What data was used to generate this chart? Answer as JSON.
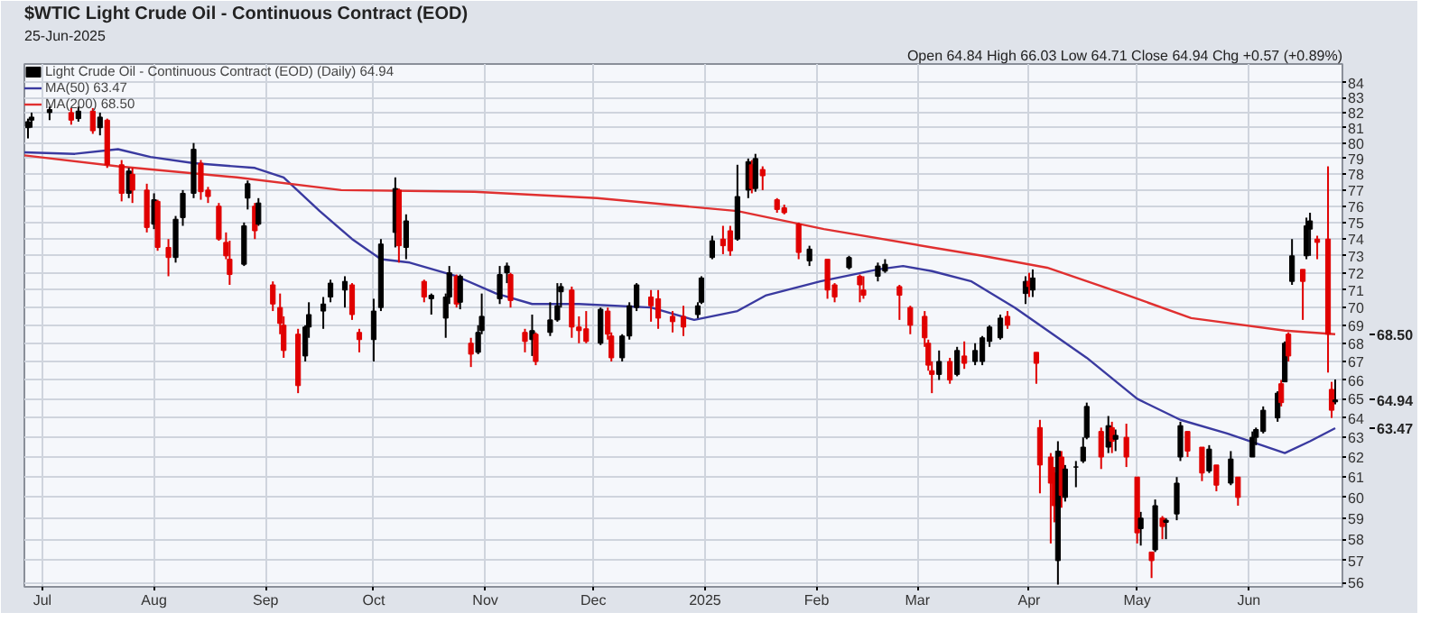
{
  "chart_data": {
    "type": "candlestick",
    "title": "$WTIC Light Crude Oil - Continuous Contract (EOD)",
    "subtitle": "25-Jun-2025",
    "annotations": [
      "Open 64.84 High 66.03 Low 64.71 Close 64.94 Chg +0.57 (+0.89%)",
      "64.94",
      "63.47",
      "68.50"
    ],
    "log": true,
    "grid": true,
    "legend": "top left",
    "xlim": [
      "2024-06-26",
      "2025-06-27"
    ],
    "xticks": [
      {
        "value": "2024-07-01",
        "label": "Jul"
      },
      {
        "value": "2024-08-01",
        "label": "Aug"
      },
      {
        "value": "2024-09-01",
        "label": "Sep"
      },
      {
        "value": "2024-10-01",
        "label": "Oct"
      },
      {
        "value": "2024-11-01",
        "label": "Nov"
      },
      {
        "value": "2024-12-01",
        "label": "Dec"
      },
      {
        "value": "2025-01-01",
        "label": "2025"
      },
      {
        "value": "2025-02-01",
        "label": "Feb"
      },
      {
        "value": "2025-03-01",
        "label": "Mar"
      },
      {
        "value": "2025-04-01",
        "label": "Apr"
      },
      {
        "value": "2025-05-01",
        "label": "May"
      },
      {
        "value": "2025-06-01",
        "label": "Jun"
      }
    ],
    "ylim": [
      55.8,
      85.3
    ],
    "yticks": [
      56,
      57,
      58,
      59,
      60,
      61,
      62,
      63,
      64,
      65,
      66,
      67,
      68,
      69,
      70,
      71,
      72,
      73,
      74,
      75,
      76,
      77,
      78,
      79,
      80,
      81,
      82,
      83,
      84
    ],
    "series": [
      {
        "type": "candlestick",
        "name": "Light Crude Oil - Continuous Contract (EOD) (Daily) 64.94",
        "x": [
          "2024-06-27",
          "2024-06-28",
          "2024-07-03",
          "2024-07-09",
          "2024-07-11",
          "2024-07-15",
          "2024-07-17",
          "2024-07-19",
          "2024-07-23",
          "2024-07-25",
          "2024-07-26",
          "2024-07-30",
          "2024-08-01",
          "2024-08-02",
          "2024-08-05",
          "2024-08-07",
          "2024-08-09",
          "2024-08-12",
          "2024-08-14",
          "2024-08-16",
          "2024-08-19",
          "2024-08-21",
          "2024-08-22",
          "2024-08-26",
          "2024-08-27",
          "2024-08-29",
          "2024-08-30",
          "2024-09-03",
          "2024-09-05",
          "2024-09-06",
          "2024-09-10",
          "2024-09-12",
          "2024-09-13",
          "2024-09-17",
          "2024-09-19",
          "2024-09-23",
          "2024-09-25",
          "2024-09-27",
          "2024-10-01",
          "2024-10-03",
          "2024-10-07",
          "2024-10-08",
          "2024-10-10",
          "2024-10-15",
          "2024-10-17",
          "2024-10-21",
          "2024-10-22",
          "2024-10-24",
          "2024-10-25",
          "2024-10-28",
          "2024-10-30",
          "2024-10-31",
          "2024-11-05",
          "2024-11-07",
          "2024-11-08",
          "2024-11-12",
          "2024-11-14",
          "2024-11-15",
          "2024-11-19",
          "2024-11-21",
          "2024-11-22",
          "2024-11-25",
          "2024-11-27",
          "2024-11-29",
          "2024-12-03",
          "2024-12-05",
          "2024-12-06",
          "2024-12-09",
          "2024-12-11",
          "2024-12-13",
          "2024-12-17",
          "2024-12-19",
          "2024-12-23",
          "2024-12-26",
          "2024-12-30",
          "2024-12-31",
          "2025-01-03",
          "2025-01-06",
          "2025-01-08",
          "2025-01-10",
          "2025-01-13",
          "2025-01-14",
          "2025-01-15",
          "2025-01-17",
          "2025-01-21",
          "2025-01-23",
          "2025-01-27",
          "2025-01-30",
          "2025-02-04",
          "2025-02-06",
          "2025-02-10",
          "2025-02-13",
          "2025-02-14",
          "2025-02-18",
          "2025-02-20",
          "2025-02-24",
          "2025-02-27",
          "2025-03-03",
          "2025-03-04",
          "2025-03-05",
          "2025-03-07",
          "2025-03-10",
          "2025-03-12",
          "2025-03-14",
          "2025-03-17",
          "2025-03-19",
          "2025-03-21",
          "2025-03-24",
          "2025-03-26",
          "2025-03-31",
          "2025-04-01",
          "2025-04-02",
          "2025-04-03",
          "2025-04-04",
          "2025-04-07",
          "2025-04-08",
          "2025-04-09",
          "2025-04-10",
          "2025-04-11",
          "2025-04-14",
          "2025-04-16",
          "2025-04-17",
          "2025-04-21",
          "2025-04-23",
          "2025-04-24",
          "2025-04-25",
          "2025-04-28",
          "2025-05-01",
          "2025-05-02",
          "2025-05-05",
          "2025-05-06",
          "2025-05-08",
          "2025-05-09",
          "2025-05-12",
          "2025-05-13",
          "2025-05-15",
          "2025-05-19",
          "2025-05-21",
          "2025-05-23",
          "2025-05-27",
          "2025-05-29",
          "2025-06-02",
          "2025-06-03",
          "2025-06-05",
          "2025-06-09",
          "2025-06-10",
          "2025-06-11",
          "2025-06-12",
          "2025-06-13",
          "2025-06-16",
          "2025-06-17",
          "2025-06-18",
          "2025-06-20",
          "2025-06-23",
          "2025-06-24",
          "2025-06-25"
        ],
        "ohlc": [
          [
            81.0,
            81.6,
            80.3,
            81.4
          ],
          [
            81.5,
            82.0,
            81.0,
            81.7
          ],
          [
            82.0,
            82.4,
            81.5,
            82.2
          ],
          [
            82.0,
            82.3,
            81.2,
            81.5
          ],
          [
            81.6,
            82.4,
            81.4,
            82.1
          ],
          [
            82.1,
            82.3,
            80.6,
            80.8
          ],
          [
            81.0,
            82.0,
            80.5,
            81.7
          ],
          [
            81.5,
            81.6,
            78.4,
            78.6
          ],
          [
            78.6,
            78.9,
            76.3,
            76.8
          ],
          [
            76.8,
            78.4,
            76.5,
            78.2
          ],
          [
            78.0,
            78.4,
            76.2,
            77.0
          ],
          [
            77.0,
            77.4,
            74.4,
            74.7
          ],
          [
            74.9,
            76.8,
            74.6,
            76.4
          ],
          [
            76.3,
            76.4,
            73.3,
            73.5
          ],
          [
            73.5,
            74.0,
            71.8,
            72.9
          ],
          [
            72.9,
            75.4,
            72.6,
            75.2
          ],
          [
            75.3,
            77.0,
            74.8,
            76.8
          ],
          [
            76.8,
            80.0,
            76.5,
            79.6
          ],
          [
            78.7,
            78.9,
            76.4,
            76.9
          ],
          [
            77.0,
            77.2,
            76.2,
            76.6
          ],
          [
            76.0,
            76.2,
            73.9,
            74.0
          ],
          [
            73.8,
            74.4,
            72.8,
            73.0
          ],
          [
            72.8,
            73.9,
            71.3,
            71.9
          ],
          [
            72.5,
            75.0,
            72.4,
            74.8
          ],
          [
            76.5,
            77.6,
            75.8,
            77.4
          ],
          [
            76.0,
            76.2,
            74.0,
            74.5
          ],
          [
            74.9,
            76.5,
            74.8,
            76.2
          ],
          [
            71.3,
            71.5,
            69.8,
            70.2
          ],
          [
            70.0,
            70.8,
            68.5,
            69.1
          ],
          [
            69.0,
            69.5,
            67.2,
            67.6
          ],
          [
            68.5,
            68.8,
            65.3,
            65.7
          ],
          [
            67.3,
            69.0,
            67.0,
            68.9
          ],
          [
            68.9,
            70.3,
            68.3,
            69.6
          ],
          [
            69.8,
            70.6,
            68.8,
            70.2
          ],
          [
            70.6,
            71.6,
            70.3,
            71.4
          ],
          [
            71.0,
            71.8,
            70.0,
            71.5
          ],
          [
            71.3,
            71.4,
            69.3,
            69.6
          ],
          [
            68.6,
            68.8,
            67.5,
            68.2
          ],
          [
            68.2,
            70.5,
            67.0,
            69.8
          ],
          [
            70.0,
            74.0,
            69.8,
            73.7
          ],
          [
            74.4,
            77.8,
            73.5,
            77.1
          ],
          [
            77.0,
            77.1,
            72.6,
            73.6
          ],
          [
            73.5,
            75.5,
            72.8,
            75.1
          ],
          [
            71.5,
            71.6,
            70.3,
            70.6
          ],
          [
            70.5,
            70.8,
            69.6,
            70.7
          ],
          [
            69.4,
            70.8,
            68.3,
            70.6
          ],
          [
            70.6,
            72.4,
            70.2,
            72.0
          ],
          [
            71.8,
            71.9,
            70.0,
            70.2
          ],
          [
            70.3,
            71.9,
            69.9,
            71.8
          ],
          [
            68.0,
            68.3,
            66.7,
            67.4
          ],
          [
            67.5,
            69.0,
            67.4,
            68.6
          ],
          [
            68.7,
            70.8,
            68.5,
            69.5
          ],
          [
            70.5,
            72.4,
            70.2,
            71.9
          ],
          [
            72.0,
            72.6,
            71.4,
            72.4
          ],
          [
            71.9,
            72.0,
            70.0,
            70.4
          ],
          [
            68.6,
            68.8,
            67.5,
            68.1
          ],
          [
            68.2,
            69.6,
            67.3,
            68.7
          ],
          [
            68.5,
            68.6,
            66.8,
            67.0
          ],
          [
            68.6,
            70.3,
            68.4,
            69.3
          ],
          [
            69.3,
            71.4,
            69.2,
            70.1
          ],
          [
            70.9,
            71.4,
            70.0,
            71.2
          ],
          [
            71.0,
            71.2,
            68.3,
            68.9
          ],
          [
            68.9,
            69.5,
            68.0,
            68.7
          ],
          [
            68.8,
            69.8,
            68.0,
            68.1
          ],
          [
            68.0,
            70.0,
            67.9,
            69.9
          ],
          [
            69.8,
            70.0,
            68.2,
            68.5
          ],
          [
            68.4,
            68.6,
            67.0,
            67.2
          ],
          [
            67.2,
            68.5,
            67.0,
            68.4
          ],
          [
            68.4,
            70.3,
            68.2,
            70.1
          ],
          [
            70.0,
            71.4,
            69.8,
            71.3
          ],
          [
            70.6,
            71.0,
            69.2,
            70.1
          ],
          [
            70.5,
            71.0,
            68.8,
            69.4
          ],
          [
            69.5,
            69.8,
            68.6,
            69.2
          ],
          [
            69.5,
            70.1,
            68.4,
            68.9
          ],
          [
            69.6,
            70.3,
            69.4,
            70.1
          ],
          [
            70.3,
            71.8,
            70.2,
            71.7
          ],
          [
            72.9,
            74.2,
            72.8,
            73.9
          ],
          [
            74.0,
            74.8,
            73.1,
            73.6
          ],
          [
            74.5,
            74.8,
            73.0,
            73.3
          ],
          [
            74.0,
            78.6,
            73.9,
            76.6
          ],
          [
            77.0,
            79.0,
            76.5,
            78.8
          ],
          [
            78.6,
            78.9,
            76.8,
            77.1
          ],
          [
            77.1,
            79.3,
            76.9,
            79.0
          ],
          [
            78.3,
            78.5,
            77.0,
            77.9
          ],
          [
            76.4,
            76.5,
            75.6,
            75.8
          ],
          [
            75.9,
            76.1,
            75.5,
            75.6
          ],
          [
            74.9,
            75.0,
            72.8,
            73.2
          ],
          [
            72.7,
            73.6,
            72.4,
            73.4
          ],
          [
            72.8,
            72.8,
            70.5,
            71.0
          ],
          [
            71.3,
            71.4,
            70.3,
            70.6
          ],
          [
            72.3,
            73.0,
            72.2,
            72.9
          ],
          [
            71.8,
            71.9,
            70.3,
            71.3
          ],
          [
            71.0,
            71.8,
            70.5,
            70.7
          ],
          [
            71.8,
            72.6,
            71.5,
            72.4
          ],
          [
            72.1,
            72.8,
            72.0,
            72.5
          ],
          [
            71.2,
            71.3,
            69.3,
            70.7
          ],
          [
            70.0,
            70.1,
            68.5,
            69.0
          ],
          [
            69.5,
            69.8,
            67.8,
            68.3
          ],
          [
            68.0,
            68.2,
            66.5,
            66.8
          ],
          [
            66.5,
            67.0,
            65.3,
            66.3
          ],
          [
            66.3,
            67.6,
            66.0,
            67.0
          ],
          [
            67.0,
            67.2,
            65.8,
            66.0
          ],
          [
            66.3,
            67.8,
            66.2,
            67.6
          ],
          [
            67.3,
            68.1,
            66.6,
            66.9
          ],
          [
            67.0,
            68.0,
            66.8,
            67.6
          ],
          [
            67.0,
            68.4,
            66.8,
            68.3
          ],
          [
            68.1,
            69.0,
            67.8,
            68.9
          ],
          [
            68.3,
            69.6,
            68.2,
            69.4
          ],
          [
            69.5,
            69.8,
            68.8,
            69.0
          ],
          [
            70.8,
            71.8,
            70.2,
            71.5
          ],
          [
            71.5,
            72.0,
            70.6,
            71.2
          ],
          [
            71.0,
            72.2,
            70.6,
            71.7
          ],
          [
            67.5,
            67.5,
            65.8,
            66.9
          ],
          [
            63.5,
            63.9,
            60.2,
            61.6
          ],
          [
            62.0,
            62.2,
            57.8,
            60.7
          ],
          [
            61.2,
            61.5,
            58.8,
            59.6
          ],
          [
            57.0,
            62.8,
            55.9,
            62.3
          ],
          [
            62.0,
            62.3,
            59.5,
            60.1
          ],
          [
            60.0,
            61.6,
            59.8,
            61.4
          ],
          [
            61.5,
            61.8,
            60.5,
            61.5
          ],
          [
            61.8,
            63.0,
            61.7,
            62.5
          ],
          [
            63.0,
            64.8,
            62.9,
            64.6
          ],
          [
            63.3,
            63.5,
            61.4,
            62.0
          ],
          [
            62.5,
            64.1,
            62.2,
            63.6
          ],
          [
            63.5,
            63.8,
            62.2,
            62.8
          ],
          [
            62.9,
            63.4,
            62.3,
            63.1
          ],
          [
            63.0,
            63.7,
            61.5,
            62.0
          ],
          [
            61.0,
            61.0,
            57.8,
            58.3
          ],
          [
            58.5,
            59.3,
            57.7,
            59.0
          ],
          [
            57.4,
            57.4,
            56.2,
            57.0
          ],
          [
            57.5,
            59.9,
            57.4,
            59.6
          ],
          [
            59.0,
            59.1,
            58.0,
            58.6
          ],
          [
            58.8,
            59.0,
            58.0,
            58.9
          ],
          [
            59.2,
            61.0,
            58.9,
            60.7
          ],
          [
            62.0,
            63.8,
            61.8,
            63.6
          ],
          [
            63.3,
            63.3,
            62.0,
            62.3
          ],
          [
            62.5,
            62.5,
            60.8,
            61.2
          ],
          [
            61.3,
            62.6,
            61.2,
            62.4
          ],
          [
            61.6,
            61.6,
            60.3,
            60.6
          ],
          [
            60.7,
            62.3,
            60.6,
            61.9
          ],
          [
            61.0,
            61.0,
            59.6,
            60.0
          ],
          [
            62.0,
            63.3,
            62.0,
            63.0
          ],
          [
            63.0,
            63.5,
            62.6,
            63.4
          ],
          [
            63.3,
            64.6,
            63.2,
            64.4
          ],
          [
            64.0,
            65.4,
            63.8,
            65.3
          ],
          [
            65.8,
            66.0,
            64.6,
            64.8
          ],
          [
            65.9,
            68.1,
            65.9,
            68.0
          ],
          [
            68.5,
            68.6,
            67.0,
            67.3
          ],
          [
            71.5,
            74.0,
            71.3,
            73.0
          ],
          [
            72.2,
            72.2,
            69.3,
            71.5
          ],
          [
            73.0,
            75.3,
            72.8,
            74.8
          ],
          [
            74.6,
            75.6,
            73.0,
            75.1
          ],
          [
            74.0,
            74.2,
            72.8,
            73.8
          ],
          [
            74.0,
            78.5,
            66.4,
            68.5
          ],
          [
            65.5,
            65.9,
            64.0,
            64.4
          ],
          [
            64.84,
            66.03,
            64.71,
            64.94
          ]
        ],
        "colors": [
          "#000000",
          "#000000",
          "#000000",
          "#e00000",
          "#000000",
          "#e00000",
          "#000000",
          "#e00000",
          "#e00000",
          "#000000",
          "#e00000",
          "#e00000",
          "#000000",
          "#e00000",
          "#e00000",
          "#000000",
          "#000000",
          "#000000",
          "#e00000",
          "#e00000",
          "#e00000",
          "#e00000",
          "#e00000",
          "#000000",
          "#000000",
          "#e00000",
          "#000000",
          "#e00000",
          "#e00000",
          "#e00000",
          "#e00000",
          "#000000",
          "#000000",
          "#000000",
          "#000000",
          "#000000",
          "#e00000",
          "#e00000",
          "#000000",
          "#000000",
          "#000000",
          "#e00000",
          "#000000",
          "#e00000",
          "#000000",
          "#000000",
          "#000000",
          "#e00000",
          "#000000",
          "#e00000",
          "#000000",
          "#000000",
          "#000000",
          "#000000",
          "#e00000",
          "#e00000",
          "#000000",
          "#e00000",
          "#000000",
          "#000000",
          "#000000",
          "#e00000",
          "#e00000",
          "#e00000",
          "#000000",
          "#e00000",
          "#e00000",
          "#000000",
          "#000000",
          "#000000",
          "#e00000",
          "#e00000",
          "#e00000",
          "#e00000",
          "#000000",
          "#000000",
          "#000000",
          "#e00000",
          "#e00000",
          "#000000",
          "#000000",
          "#e00000",
          "#000000",
          "#e00000",
          "#e00000",
          "#e00000",
          "#e00000",
          "#000000",
          "#e00000",
          "#e00000",
          "#000000",
          "#e00000",
          "#e00000",
          "#000000",
          "#000000",
          "#e00000",
          "#e00000",
          "#e00000",
          "#e00000",
          "#e00000",
          "#000000",
          "#e00000",
          "#000000",
          "#e00000",
          "#000000",
          "#000000",
          "#000000",
          "#000000",
          "#e00000",
          "#000000",
          "#e00000",
          "#000000",
          "#e00000",
          "#e00000",
          "#e00000",
          "#e00000",
          "#000000",
          "#e00000",
          "#000000",
          "#000000",
          "#000000",
          "#000000",
          "#e00000",
          "#000000",
          "#e00000",
          "#000000",
          "#e00000",
          "#e00000",
          "#000000",
          "#e00000",
          "#000000",
          "#e00000",
          "#000000",
          "#000000",
          "#000000",
          "#e00000",
          "#e00000",
          "#000000",
          "#e00000",
          "#000000",
          "#e00000",
          "#000000",
          "#000000",
          "#000000",
          "#000000",
          "#e00000",
          "#000000",
          "#e00000",
          "#000000",
          "#e00000",
          "#000000",
          "#000000",
          "#e00000",
          "#e00000",
          "#e00000",
          "#000000"
        ]
      },
      {
        "type": "line",
        "name": "MA(50) 63.47",
        "color": "#3a3aa0",
        "x": [
          "2024-06-26",
          "2024-07-10",
          "2024-07-22",
          "2024-07-31",
          "2024-08-12",
          "2024-08-29",
          "2024-09-06",
          "2024-09-16",
          "2024-09-25",
          "2024-10-03",
          "2024-10-11",
          "2024-10-24",
          "2024-11-04",
          "2024-11-14",
          "2024-11-27",
          "2024-12-17",
          "2024-12-29",
          "2025-01-10",
          "2025-01-18",
          "2025-02-02",
          "2025-02-18",
          "2025-02-25",
          "2025-03-05",
          "2025-03-16",
          "2025-03-28",
          "2025-04-04",
          "2025-04-17",
          "2025-05-01",
          "2025-05-13",
          "2025-05-26",
          "2025-06-11",
          "2025-06-18",
          "2025-06-25"
        ],
        "values": [
          79.4,
          79.3,
          79.6,
          79.1,
          78.7,
          78.4,
          77.8,
          75.7,
          74.0,
          72.8,
          72.6,
          71.8,
          70.8,
          70.2,
          70.2,
          70.0,
          69.3,
          69.8,
          70.7,
          71.5,
          72.2,
          72.4,
          72.1,
          71.5,
          70.0,
          69.0,
          67.2,
          65.0,
          63.9,
          63.2,
          62.2,
          62.8,
          63.47
        ]
      },
      {
        "type": "line",
        "name": "MA(200) 68.50",
        "color": "#e03030",
        "x": [
          "2024-06-26",
          "2024-07-22",
          "2024-08-24",
          "2024-09-22",
          "2024-10-29",
          "2024-12-02",
          "2025-01-10",
          "2025-02-03",
          "2025-03-05",
          "2025-03-19",
          "2025-04-06",
          "2025-04-27",
          "2025-05-16",
          "2025-06-11",
          "2025-06-25"
        ],
        "values": [
          79.2,
          78.5,
          77.8,
          77.0,
          76.9,
          76.5,
          75.7,
          74.6,
          73.5,
          73.0,
          72.3,
          70.8,
          69.4,
          68.7,
          68.5
        ]
      }
    ]
  }
}
